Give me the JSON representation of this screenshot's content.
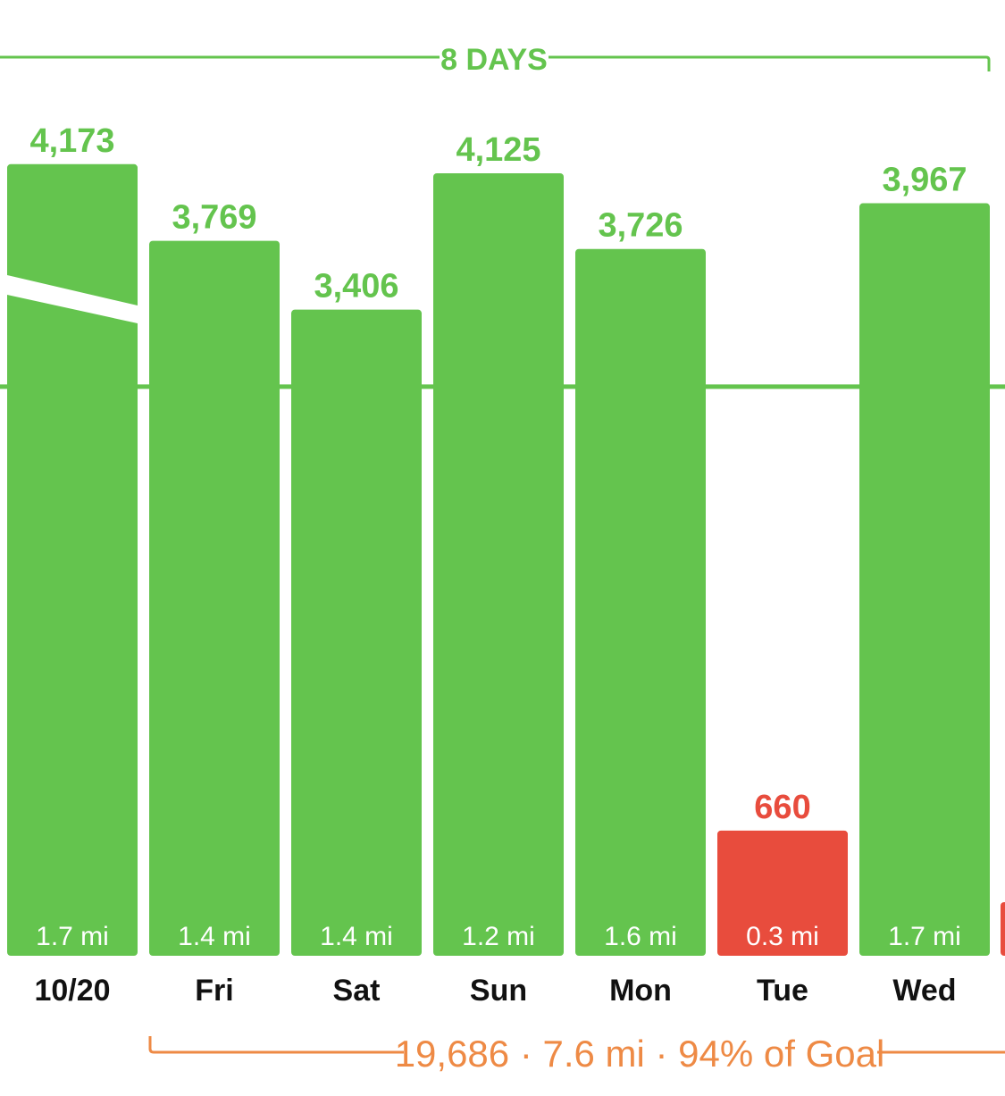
{
  "chart_data": {
    "type": "bar",
    "top_bracket_label": "8 DAYS",
    "categories": [
      "10/20",
      "Fri",
      "Sat",
      "Sun",
      "Mon",
      "Tue",
      "Wed"
    ],
    "values": [
      4173,
      3769,
      3406,
      4125,
      3726,
      660,
      3967
    ],
    "value_labels": [
      "4,173",
      "3,769",
      "3,406",
      "4,125",
      "3,726",
      "660",
      "3,967"
    ],
    "distances": [
      "1.7 mi",
      "1.4 mi",
      "1.4 mi",
      "1.2 mi",
      "1.6 mi",
      "0.3 mi",
      "1.7 mi"
    ],
    "status": [
      "goal",
      "goal",
      "goal",
      "goal",
      "goal",
      "below",
      "goal"
    ],
    "goal_line_value": 3000,
    "ylim": [
      0,
      4850
    ],
    "summary": "19,686 · 7.6 mi · 94% of Goal",
    "colors": {
      "goal": "#64c44e",
      "below": "#e84c3d",
      "goal_text": "#64c44e",
      "below_text": "#e84c3d",
      "summary": "#ee8a45",
      "axis_text": "#111111",
      "distance_text": "#ffffff"
    }
  }
}
